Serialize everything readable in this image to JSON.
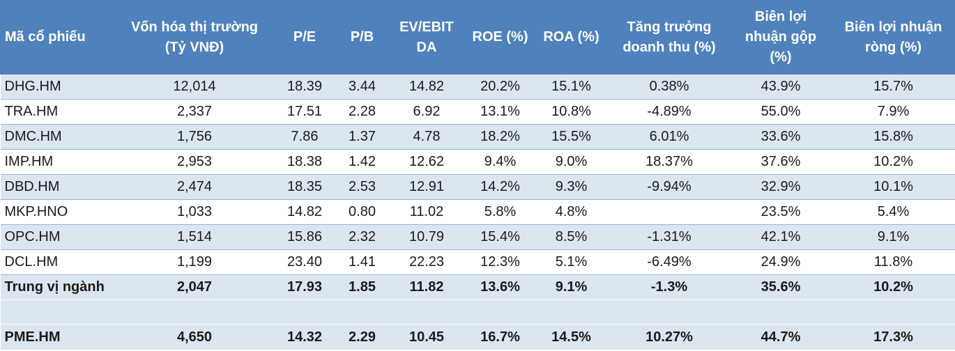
{
  "table": {
    "headers": [
      "Mã cổ phiếu",
      "Vốn hóa thị trường (Tỷ VNĐ)",
      "P/E",
      "P/B",
      "EV/EBIT DA",
      "ROE (%)",
      "ROA (%)",
      "Tăng trưởng doanh thu (%)",
      "Biên lợi nhuận gộp (%)",
      "Biên lợi nhuận ròng (%)"
    ],
    "rows": [
      [
        "DHG.HM",
        "12,014",
        "18.39",
        "3.44",
        "14.82",
        "20.2%",
        "15.1%",
        "0.38%",
        "43.9%",
        "15.7%"
      ],
      [
        "TRA.HM",
        "2,337",
        "17.51",
        "2.28",
        "6.92",
        "13.1%",
        "10.8%",
        "-4.89%",
        "55.0%",
        "7.9%"
      ],
      [
        "DMC.HM",
        "1,756",
        "7.86",
        "1.37",
        "4.78",
        "18.2%",
        "15.5%",
        "6.01%",
        "33.6%",
        "15.8%"
      ],
      [
        "IMP.HM",
        "2,953",
        "18.38",
        "1.42",
        "12.62",
        "9.4%",
        "9.0%",
        "18.37%",
        "37.6%",
        "10.2%"
      ],
      [
        "DBD.HM",
        "2,474",
        "18.35",
        "2.53",
        "12.91",
        "14.2%",
        "9.3%",
        "-9.94%",
        "32.9%",
        "10.1%"
      ],
      [
        "MKP.HNO",
        "1,033",
        "14.82",
        "0.80",
        "11.02",
        "5.8%",
        "4.8%",
        "",
        "23.5%",
        "5.4%"
      ],
      [
        "OPC.HM",
        "1,514",
        "15.86",
        "2.32",
        "10.79",
        "15.4%",
        "8.5%",
        "-1.31%",
        "42.1%",
        "9.1%"
      ],
      [
        "DCL.HM",
        "1,199",
        "23.40",
        "1.41",
        "22.23",
        "12.3%",
        "5.1%",
        "-6.49%",
        "24.9%",
        "11.8%"
      ]
    ],
    "median": [
      "Trung vị ngành",
      "2,047",
      "17.93",
      "1.85",
      "11.82",
      "13.6%",
      "9.1%",
      "-1.3%",
      "35.6%",
      "10.2%"
    ],
    "target": [
      "PME.HM",
      "4,650",
      "14.32",
      "2.29",
      "10.45",
      "16.7%",
      "14.5%",
      "10.27%",
      "44.7%",
      "17.3%"
    ]
  },
  "colors": {
    "header_bg": "#4f81bd",
    "header_text": "#ffffff",
    "band_light": "#dce6f1",
    "row_border": "#95b3d7"
  }
}
